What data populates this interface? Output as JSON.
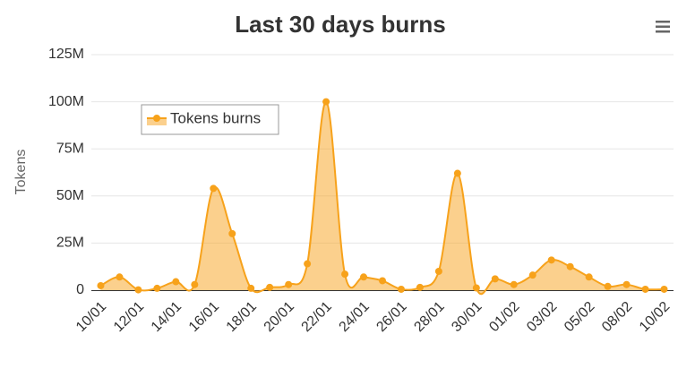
{
  "chart_data": {
    "type": "area",
    "title": "Last 30 days burns",
    "y_label": "Tokens",
    "categories": [
      "10/01",
      null,
      "12/01",
      null,
      "14/01",
      null,
      "16/01",
      null,
      "18/01",
      null,
      "20/01",
      null,
      "22/01",
      null,
      "24/01",
      null,
      "26/01",
      null,
      "28/01",
      null,
      "30/01",
      null,
      "01/02",
      null,
      "03/02",
      null,
      "05/02",
      null,
      "08/02",
      null,
      "10/02"
    ],
    "series": [
      {
        "name": "Tokens burns",
        "color": "#f7a21b",
        "values": [
          2400000,
          7000000,
          200000,
          1000000,
          4500000,
          3000000,
          54000000,
          30000000,
          1000000,
          1500000,
          3000000,
          14000000,
          100000000,
          8500000,
          7000000,
          5000000,
          500000,
          1500000,
          10000000,
          62000000,
          1200000,
          6000000,
          3000000,
          8000000,
          16000000,
          12500000,
          7000000,
          2000000,
          3000000,
          500000,
          500000
        ]
      }
    ],
    "ylim": [
      0,
      125000000
    ],
    "yticks": [
      {
        "value": 0,
        "label": "0"
      },
      {
        "value": 25000000,
        "label": "25M"
      },
      {
        "value": 50000000,
        "label": "50M"
      },
      {
        "value": 75000000,
        "label": "75M"
      },
      {
        "value": 100000000,
        "label": "100M"
      },
      {
        "value": 125000000,
        "label": "125M"
      }
    ],
    "grid": true,
    "legend": "top-left"
  }
}
